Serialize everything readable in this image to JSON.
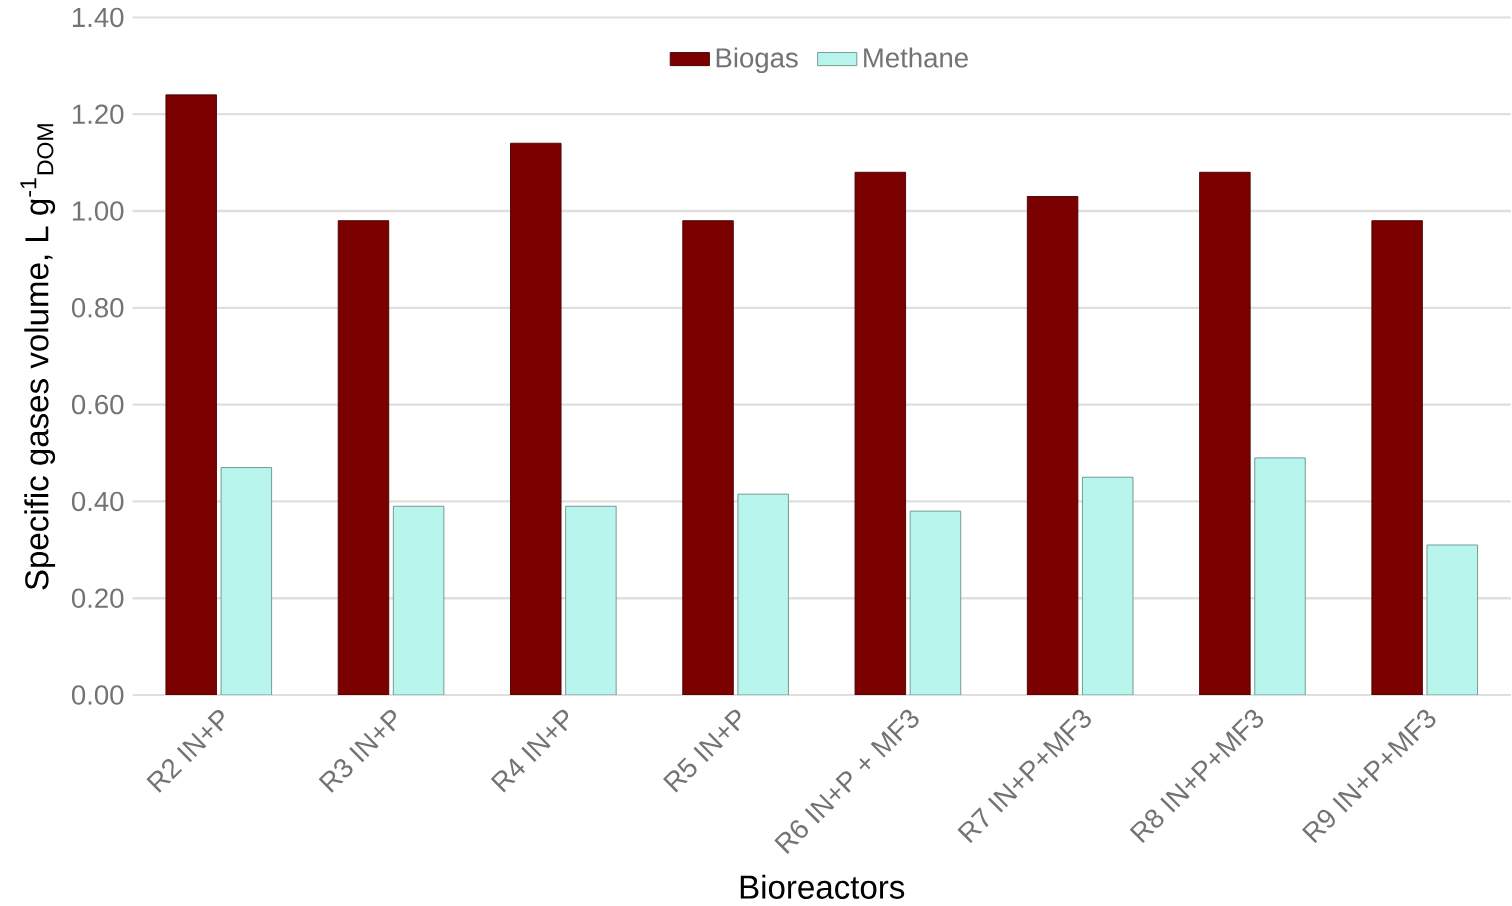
{
  "chart_data": {
    "type": "bar",
    "xlabel": "Bioreactors",
    "ylabel": "Specific gases volume, L g$^{-1}$$_{DOM}$",
    "categories": [
      "R2 IN+P",
      "R3 IN+P",
      "R4 IN+P",
      "R5 IN+P",
      "R6 IN+P + MF3",
      "R7 IN+P+MF3",
      "R8 IN+P+MF3",
      "R9 IN+P+MF3"
    ],
    "series": [
      {
        "name": "Biogas",
        "color": "#7b0000",
        "values": [
          1.24,
          0.98,
          1.14,
          0.98,
          1.08,
          1.03,
          1.08,
          0.98
        ]
      },
      {
        "name": "Methane",
        "color": "#b8f5ec",
        "values": [
          0.47,
          0.39,
          0.39,
          0.415,
          0.38,
          0.45,
          0.49,
          0.31
        ]
      }
    ],
    "ylim": [
      0,
      1.4
    ],
    "yticks": [
      {
        "value": 0,
        "label": "0.00"
      },
      {
        "value": 0.2,
        "label": "0.20"
      },
      {
        "value": 0.4,
        "label": "0.40"
      },
      {
        "value": 0.6,
        "label": "0.60"
      },
      {
        "value": 0.8,
        "label": "0.80"
      },
      {
        "value": 1.0,
        "label": "1.00"
      },
      {
        "value": 1.2,
        "label": "1.20"
      },
      {
        "value": 1.4,
        "label": "1.40"
      }
    ],
    "grid": "y",
    "legend": "top"
  }
}
